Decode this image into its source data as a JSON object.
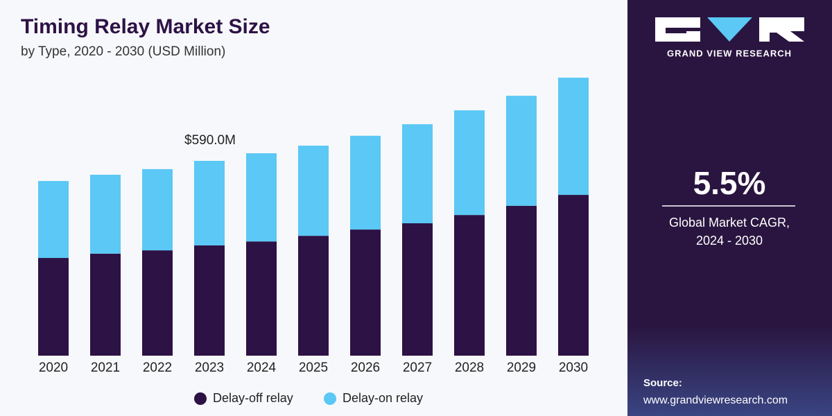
{
  "chart_data": {
    "type": "stacked-bar",
    "title": "Timing Relay Market Size",
    "subtitle": "by Type, 2020 - 2030 (USD Million)",
    "annotation": "$590.0M",
    "categories": [
      "2020",
      "2021",
      "2022",
      "2023",
      "2024",
      "2025",
      "2026",
      "2027",
      "2028",
      "2029",
      "2030"
    ],
    "series": [
      {
        "name": "Delay-off relay",
        "color": "#2d1245",
        "values": [
          296,
          309,
          319,
          334,
          346,
          363,
          382,
          401,
          426,
          454,
          487
        ]
      },
      {
        "name": "Delay-on relay",
        "color": "#5bc8f5",
        "values": [
          233,
          239,
          246,
          256,
          267,
          273,
          284,
          300,
          317,
          333,
          355
        ]
      }
    ]
  },
  "panel": {
    "brand": "GRAND VIEW RESEARCH",
    "cagr": "5.5%",
    "cagr_label_1": "Global Market CAGR,",
    "cagr_label_2": "2024 - 2030",
    "source_label": "Source:",
    "source_url": "www.grandviewresearch.com"
  }
}
